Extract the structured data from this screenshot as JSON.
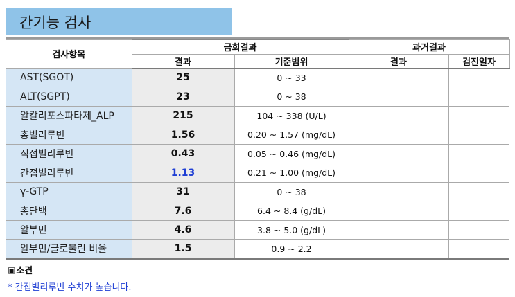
{
  "title": "간기능 검사",
  "header": {
    "item_col": "검사항목",
    "current_group": "금회결과",
    "past_group": "과거결과",
    "result": "결과",
    "range": "기준범위",
    "past_result": "결과",
    "checkup_date": "검진일자"
  },
  "rows": [
    {
      "item": "AST(SGOT)",
      "result": "25",
      "range": "0 ~ 33",
      "past_result": "",
      "date": ""
    },
    {
      "item": "ALT(SGPT)",
      "result": "23",
      "range": "0 ~ 38",
      "past_result": "",
      "date": ""
    },
    {
      "item": "알칼리포스파타제_ALP",
      "result": "215",
      "range": "104 ~ 338 (U/L)",
      "past_result": "",
      "date": ""
    },
    {
      "item": "총빌리루빈",
      "result": "1.56",
      "range": "0.20 ~ 1.57 (mg/dL)",
      "past_result": "",
      "date": ""
    },
    {
      "item": "직접빌리루빈",
      "result": "0.43",
      "range": "0.05 ~ 0.46 (mg/dL)",
      "past_result": "",
      "date": ""
    },
    {
      "item": "간접빌리루빈",
      "result": "1.13",
      "range": "0.21 ~ 1.00 (mg/dL)",
      "past_result": "",
      "date": "",
      "highlight": true
    },
    {
      "item": "γ-GTP",
      "result": "31",
      "range": "0 ~ 38",
      "past_result": "",
      "date": ""
    },
    {
      "item": "총단백",
      "result": "7.6",
      "range": "6.4 ~ 8.4 (g/dL)",
      "past_result": "",
      "date": ""
    },
    {
      "item": "알부민",
      "result": "4.6",
      "range": "3.8 ~ 5.0 (g/dL)",
      "past_result": "",
      "date": ""
    },
    {
      "item": "알부민/글로불린 비율",
      "result": "1.5",
      "range": "0.9 ~ 2.2",
      "past_result": "",
      "date": ""
    }
  ],
  "opinion": {
    "label": "소견",
    "text": "* 간접빌리루빈 수치가 높습니다."
  },
  "colors": {
    "title_bg": "#8fc3e8",
    "item_bg": "#d5e6f5",
    "result_bg": "#ececec",
    "highlight": "#1f3fd4"
  }
}
